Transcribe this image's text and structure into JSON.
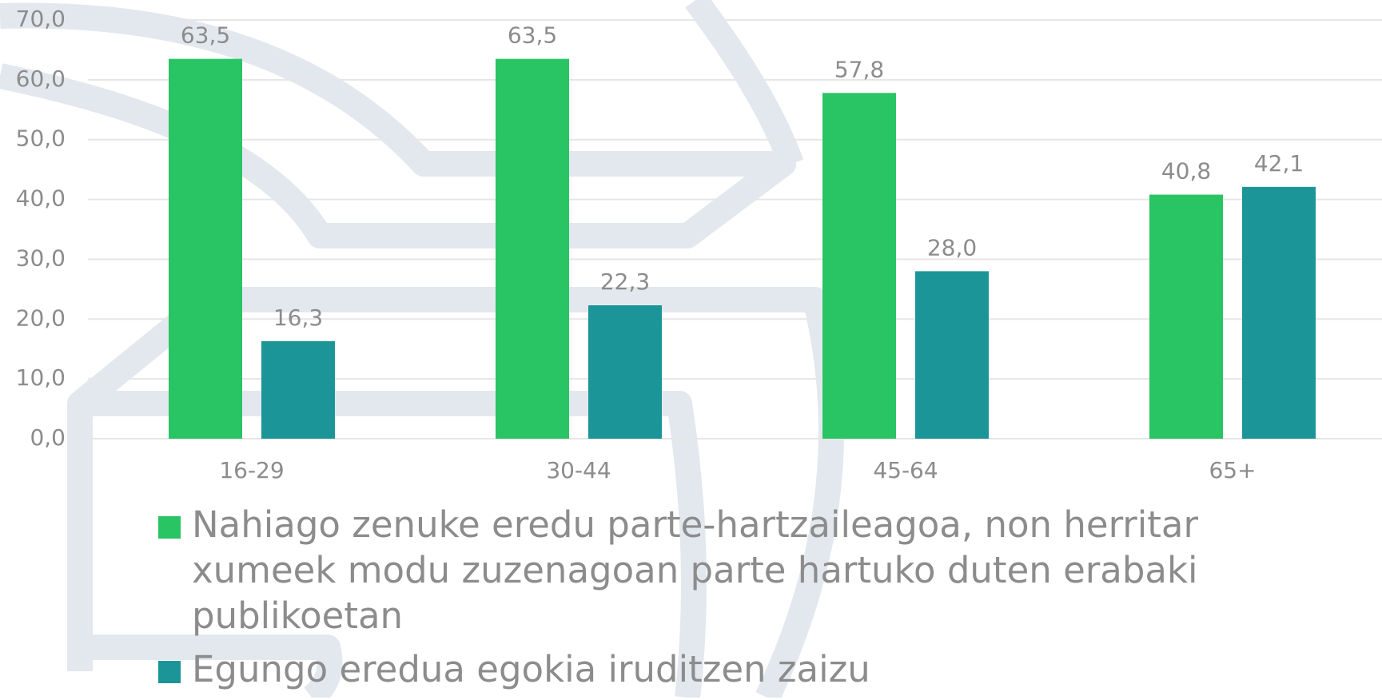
{
  "chart_data": {
    "type": "bar",
    "categories": [
      "16-29",
      "30-44",
      "45-64",
      "65+"
    ],
    "series": [
      {
        "name": "Nahiago zenuke eredu parte-hartzaileagoa, non herritar xumeek modu zuzenagoan parte hartuko duten erabaki publikoetan",
        "color": "#29c463",
        "values": [
          63.5,
          63.5,
          57.8,
          40.8
        ],
        "value_labels": [
          "63,5",
          "63,5",
          "57,8",
          "40,8"
        ]
      },
      {
        "name": "Egungo eredua egokia iruditzen zaizu",
        "color": "#1c9599",
        "values": [
          16.3,
          22.3,
          28.0,
          42.1
        ],
        "value_labels": [
          "16,3",
          "22,3",
          "28,0",
          "42,1"
        ]
      }
    ],
    "ylim": [
      0,
      70
    ],
    "yticks": [
      {
        "value": 0,
        "label": "0,0"
      },
      {
        "value": 10,
        "label": "10,0"
      },
      {
        "value": 20,
        "label": "20,0"
      },
      {
        "value": 30,
        "label": "30,0"
      },
      {
        "value": 40,
        "label": "40,0"
      },
      {
        "value": 50,
        "label": "50,0"
      },
      {
        "value": 60,
        "label": "60,0"
      },
      {
        "value": 70,
        "label": "70,0"
      }
    ],
    "grid": true
  }
}
